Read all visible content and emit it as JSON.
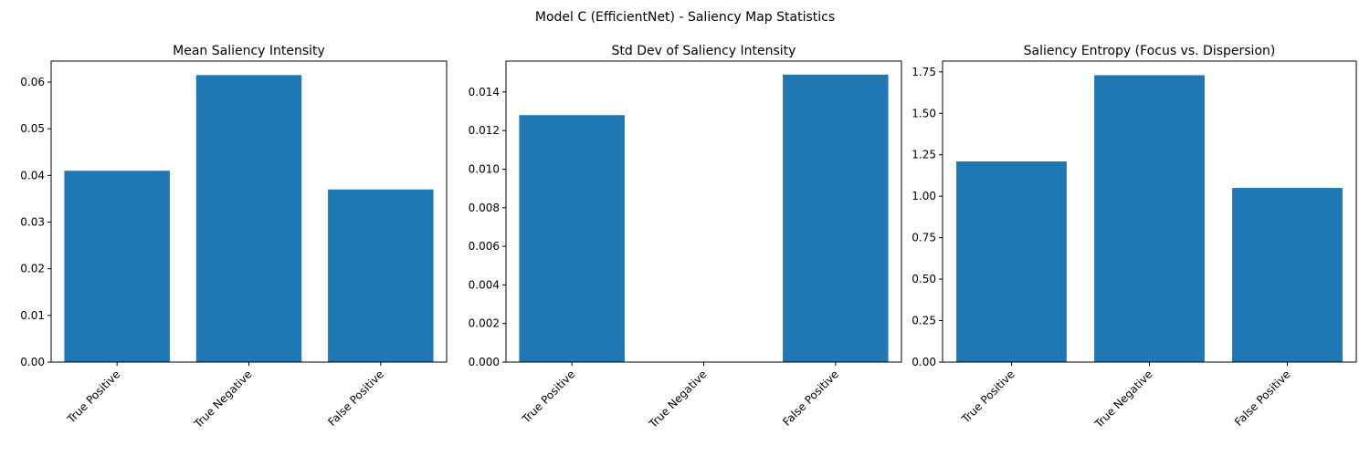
{
  "figure": {
    "suptitle": "Model C (EfficientNet) - Saliency Map Statistics",
    "bar_color": "#1f77b4"
  },
  "chart_data": [
    {
      "type": "bar",
      "title": "Mean Saliency Intensity",
      "categories": [
        "True Positive",
        "True Negative",
        "False Positive"
      ],
      "values": [
        0.041,
        0.0615,
        0.037
      ],
      "ylim": [
        0,
        0.0645
      ],
      "yticks": [
        0.0,
        0.01,
        0.02,
        0.03,
        0.04,
        0.05,
        0.06
      ],
      "ytick_labels": [
        "0.00",
        "0.01",
        "0.02",
        "0.03",
        "0.04",
        "0.05",
        "0.06"
      ],
      "grid": false
    },
    {
      "type": "bar",
      "title": "Std Dev of Saliency Intensity",
      "categories": [
        "True Positive",
        "True Negative",
        "False Positive"
      ],
      "values": [
        0.0128,
        0.0,
        0.0149
      ],
      "ylim": [
        0,
        0.0156
      ],
      "yticks": [
        0.0,
        0.002,
        0.004,
        0.006,
        0.008,
        0.01,
        0.012,
        0.014
      ],
      "ytick_labels": [
        "0.000",
        "0.002",
        "0.004",
        "0.006",
        "0.008",
        "0.010",
        "0.012",
        "0.014"
      ],
      "grid": false
    },
    {
      "type": "bar",
      "title": "Saliency Entropy (Focus vs. Dispersion)",
      "categories": [
        "True Positive",
        "True Negative",
        "False Positive"
      ],
      "values": [
        1.21,
        1.73,
        1.05
      ],
      "ylim": [
        0,
        1.815
      ],
      "yticks": [
        0.0,
        0.25,
        0.5,
        0.75,
        1.0,
        1.25,
        1.5,
        1.75
      ],
      "ytick_labels": [
        "0.00",
        "0.25",
        "0.50",
        "0.75",
        "1.00",
        "1.25",
        "1.50",
        "1.75"
      ],
      "grid": false
    }
  ]
}
